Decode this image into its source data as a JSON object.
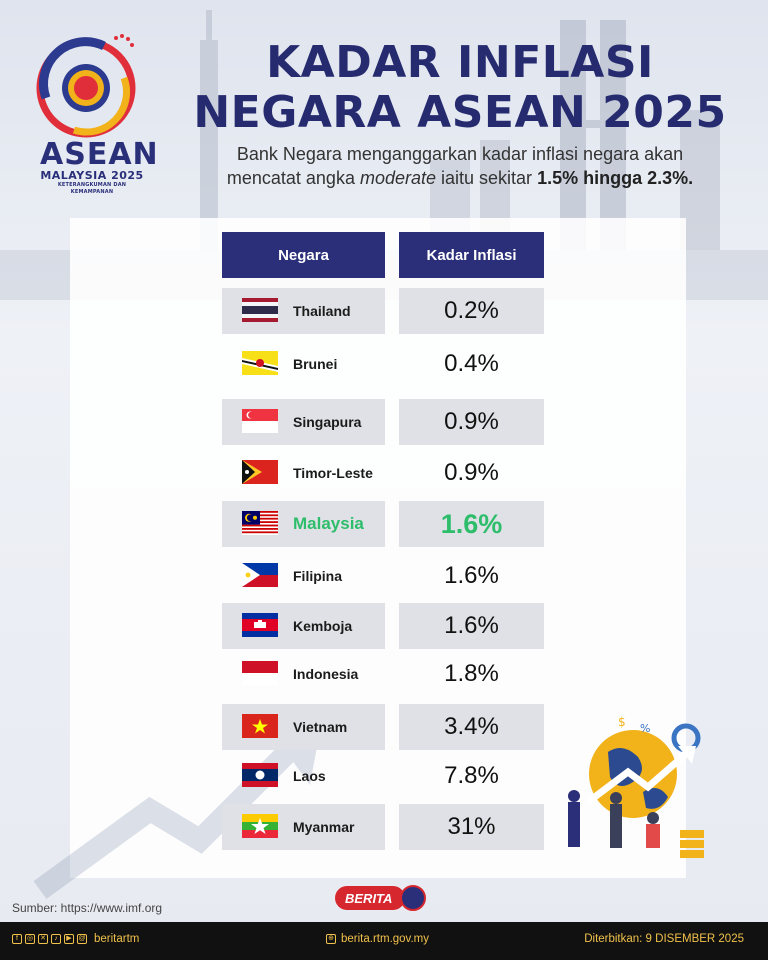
{
  "logo": {
    "word": "ASEAN",
    "line1": "MALAYSIA 2025",
    "line2": "KETERANGKUMAN DAN KEMAMPANAN"
  },
  "title_line1": "KADAR INFLASI",
  "title_line2": "NEGARA ASEAN 2025",
  "subtitle": {
    "part1": "Bank Negara menganggarkan kadar inflasi negara akan",
    "part2": "mencatat angka ",
    "italic": "moderate",
    "part3": " iaitu sekitar ",
    "bold": "1.5% hingga 2.3%."
  },
  "table": {
    "col_country": "Negara",
    "col_rate": "Kadar Inflasi",
    "rows": [
      {
        "country": "Thailand",
        "rate": "0.2%",
        "flag": "thailand-flag-icon"
      },
      {
        "country": "Brunei",
        "rate": "0.4%",
        "flag": "brunei-flag-icon"
      },
      {
        "country": "Singapura",
        "rate": "0.9%",
        "flag": "singapore-flag-icon"
      },
      {
        "country": "Timor-Leste",
        "rate": "0.9%",
        "flag": "timor-leste-flag-icon"
      },
      {
        "country": "Malaysia",
        "rate": "1.6%",
        "flag": "malaysia-flag-icon"
      },
      {
        "country": "Filipina",
        "rate": "1.6%",
        "flag": "philippines-flag-icon"
      },
      {
        "country": "Kemboja",
        "rate": "1.6%",
        "flag": "cambodia-flag-icon"
      },
      {
        "country": "Indonesia",
        "rate": "1.8%",
        "flag": "indonesia-flag-icon"
      },
      {
        "country": "Vietnam",
        "rate": "3.4%",
        "flag": "vietnam-flag-icon"
      },
      {
        "country": "Laos",
        "rate": "7.8%",
        "flag": "laos-flag-icon"
      },
      {
        "country": "Myanmar",
        "rate": "31%",
        "flag": "myanmar-flag-icon"
      }
    ]
  },
  "colors": {
    "navy": "#2b2f7a",
    "highlight": "#2ebd6b",
    "row_shade": "#dfe1e6",
    "footer_text": "#f0c14b"
  },
  "brand": "BERITA",
  "source": "Sumber: https://www.imf.org",
  "footer": {
    "handle": "beritartm",
    "site": "berita.rtm.gov.my",
    "published": "Diterbitkan: 9 DISEMBER 2025",
    "icons": [
      "facebook-icon",
      "instagram-icon",
      "x-icon",
      "tiktok-icon",
      "youtube-icon",
      "threads-icon"
    ]
  }
}
